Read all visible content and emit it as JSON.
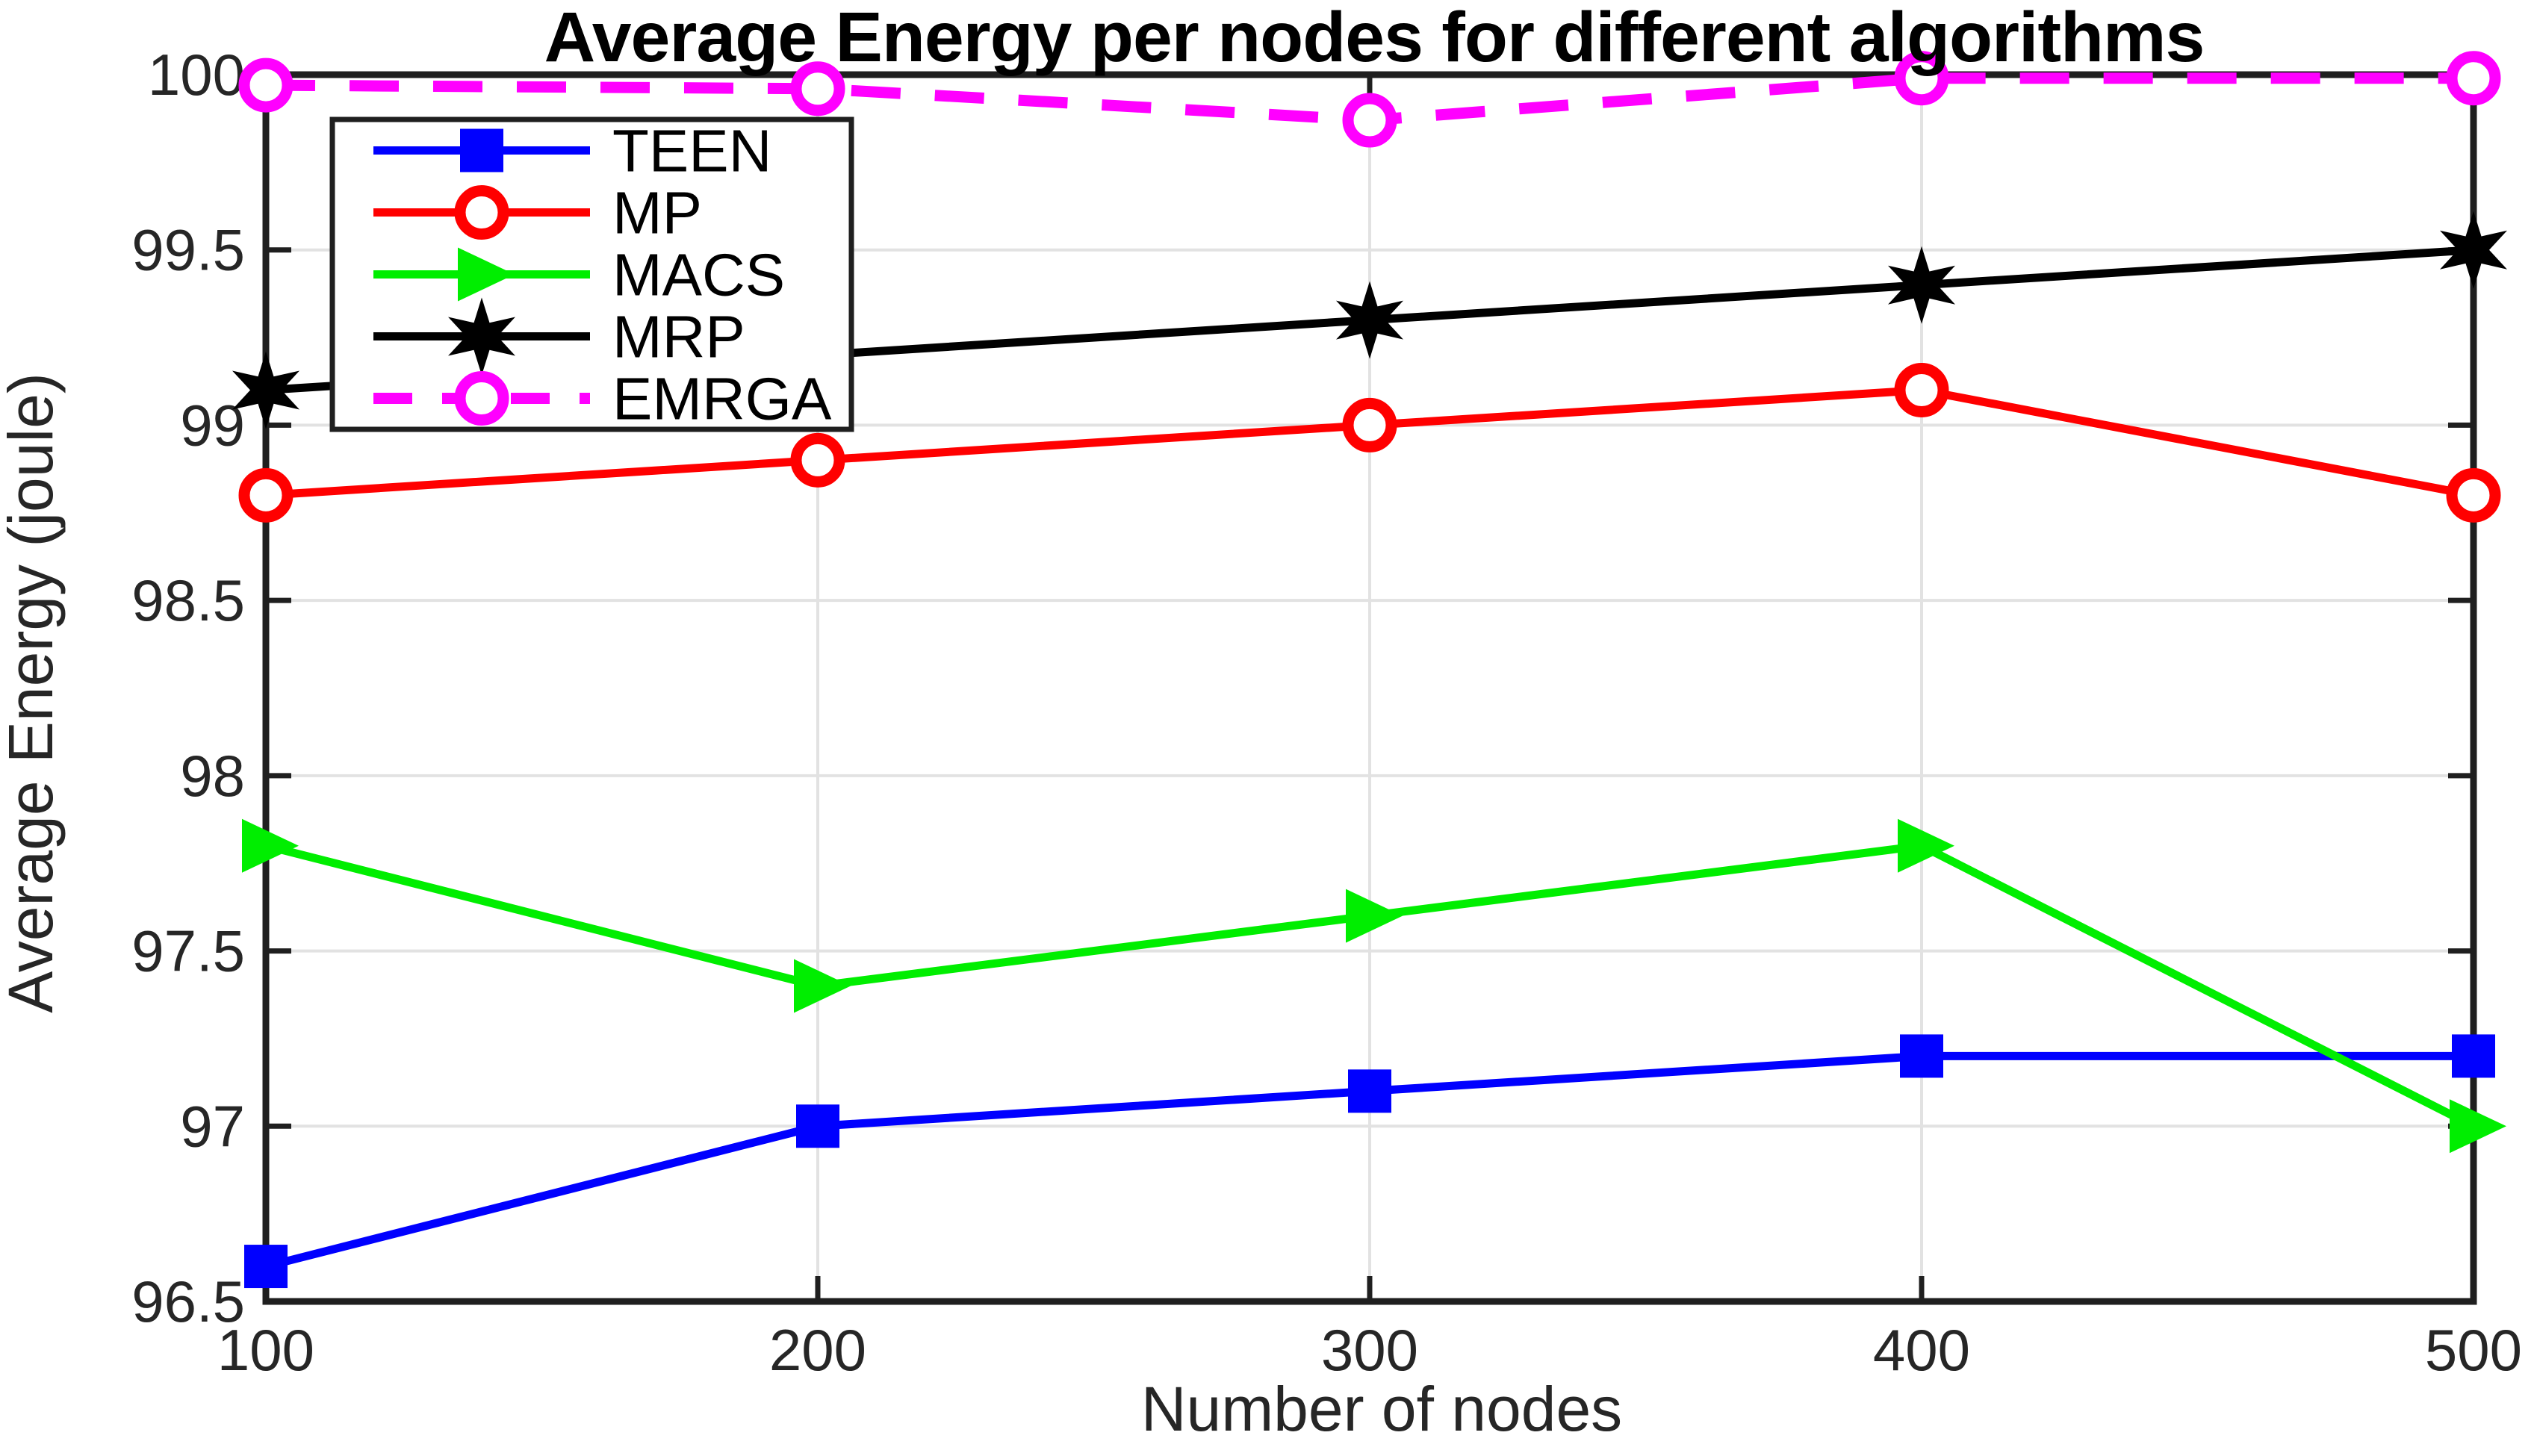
{
  "figure": {
    "title": "Average Energy per nodes for different algorithms",
    "xlabel": "Number of nodes",
    "ylabel": "Average Energy (joule)"
  },
  "chart_data": {
    "type": "line",
    "title": "Average Energy per nodes for different algorithms",
    "xlabel": "Number of nodes",
    "ylabel": "Average Energy (joule)",
    "x": [
      100,
      200,
      300,
      400,
      500
    ],
    "xlim": [
      100,
      500
    ],
    "ylim": [
      96.5,
      100
    ],
    "xticks": [
      100,
      200,
      300,
      400,
      500
    ],
    "yticks": [
      96.5,
      97,
      97.5,
      98,
      98.5,
      99,
      99.5,
      100
    ],
    "ytick_labels": [
      "96.5",
      "97",
      "97.5",
      "98",
      "98.5",
      "99",
      "99.5",
      "100"
    ],
    "xtick_labels": [
      "100",
      "200",
      "300",
      "400",
      "500"
    ],
    "grid": true,
    "legend_position": "top-left",
    "series": [
      {
        "name": "TEEN",
        "color": "#0000ff",
        "marker": "square",
        "line": "solid",
        "values": [
          96.6,
          97.0,
          97.1,
          97.2,
          97.2
        ]
      },
      {
        "name": "MP",
        "color": "#ff0000",
        "marker": "circle",
        "line": "solid",
        "values": [
          98.8,
          98.9,
          99.0,
          99.1,
          98.8
        ]
      },
      {
        "name": "MACS",
        "color": "#00ee00",
        "marker": "triangle-right",
        "line": "solid",
        "values": [
          97.8,
          97.4,
          97.6,
          97.8,
          97.0
        ]
      },
      {
        "name": "MRP",
        "color": "#000000",
        "marker": "hexagram",
        "line": "solid",
        "values": [
          99.1,
          99.2,
          99.3,
          99.4,
          99.5
        ]
      },
      {
        "name": "EMRGA",
        "color": "#ff00ff",
        "marker": "circle",
        "line": "dashed",
        "values": [
          99.97,
          99.96,
          99.87,
          99.99,
          99.99
        ]
      }
    ],
    "styles": {
      "axis_color": "#1f1f1f",
      "grid_color": "#e2e2e2",
      "tick_label_color": "#262626",
      "background": "#ffffff",
      "legend_border_color": "#1f1f1f",
      "legend_background": "#ffffff"
    }
  }
}
